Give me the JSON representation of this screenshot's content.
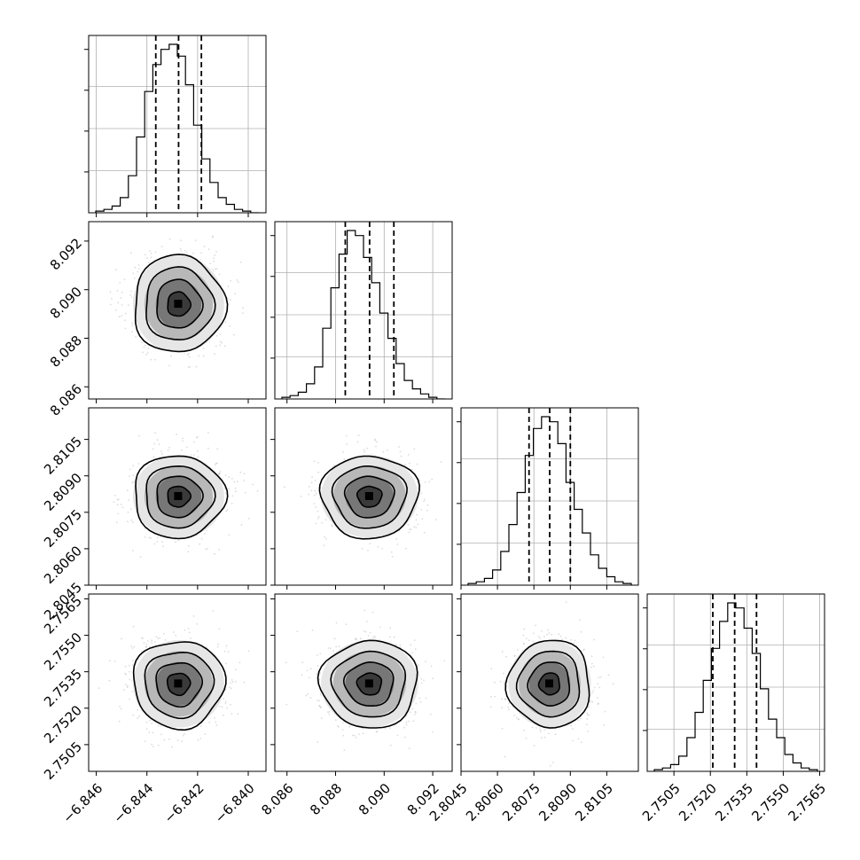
{
  "chart_data": {
    "type": "corner",
    "parameters": [
      {
        "ticks": [
          -6.846,
          -6.844,
          -6.842,
          -6.84
        ],
        "tick_labels": [
          "−6.846",
          "−6.844",
          "−6.842",
          "−6.840"
        ],
        "range": [
          -6.8463,
          -6.8393
        ],
        "quantiles": [
          -6.84365,
          -6.84275,
          -6.84185
        ],
        "median": -6.84275,
        "sigma": 0.0009
      },
      {
        "ticks": [
          8.086,
          8.088,
          8.09,
          8.092
        ],
        "tick_labels": [
          "8.086",
          "8.088",
          "8.090",
          "8.092"
        ],
        "range": [
          8.0855,
          8.0928
        ],
        "quantiles": [
          8.0884,
          8.0894,
          8.0904
        ],
        "median": 8.0894,
        "sigma": 0.001
      },
      {
        "ticks": [
          2.8045,
          2.806,
          2.8075,
          2.809,
          2.8105
        ],
        "tick_labels": [
          "2.8045",
          "2.8060",
          "2.8075",
          "2.8090",
          "2.8105"
        ],
        "range": [
          2.8045,
          2.8118
        ],
        "quantiles": [
          2.8073,
          2.80815,
          2.809
        ],
        "median": 2.80815,
        "sigma": 0.00085
      },
      {
        "ticks": [
          2.7505,
          2.752,
          2.7535,
          2.755,
          2.7565
        ],
        "tick_labels": [
          "2.7505",
          "2.7520",
          "2.7535",
          "2.7550",
          "2.7565"
        ],
        "range": [
          2.7494,
          2.7567
        ],
        "quantiles": [
          2.7521,
          2.753,
          2.7539
        ],
        "median": 2.753,
        "sigma": 0.0009
      }
    ],
    "histograms": [
      [
        0.01,
        0.02,
        0.04,
        0.09,
        0.22,
        0.45,
        0.72,
        0.88,
        0.97,
        1.0,
        0.93,
        0.76,
        0.52,
        0.32,
        0.18,
        0.09,
        0.05,
        0.02,
        0.01,
        0.0
      ],
      [
        0.01,
        0.02,
        0.04,
        0.09,
        0.19,
        0.42,
        0.66,
        0.86,
        1.0,
        0.97,
        0.84,
        0.69,
        0.51,
        0.36,
        0.21,
        0.11,
        0.06,
        0.03,
        0.01,
        0.0
      ],
      [
        0.01,
        0.02,
        0.04,
        0.09,
        0.2,
        0.36,
        0.55,
        0.77,
        0.93,
        1.0,
        0.97,
        0.84,
        0.61,
        0.45,
        0.31,
        0.18,
        0.1,
        0.05,
        0.02,
        0.01
      ],
      [
        0.01,
        0.02,
        0.04,
        0.09,
        0.2,
        0.35,
        0.54,
        0.73,
        0.89,
        1.0,
        0.97,
        0.85,
        0.7,
        0.49,
        0.31,
        0.2,
        0.1,
        0.05,
        0.02,
        0.01
      ]
    ],
    "contour_levels_sigma": [
      0.5,
      1.0,
      1.5,
      2.0
    ],
    "grid": true
  }
}
